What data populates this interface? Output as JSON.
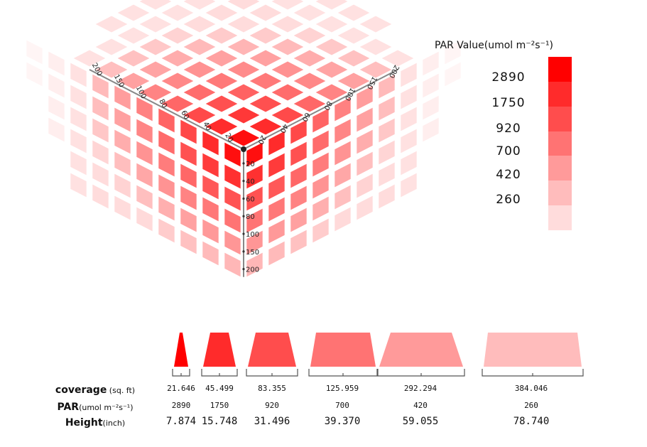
{
  "legend": {
    "title": "PAR Value(umol m⁻²s⁻¹)",
    "labels": [
      "2890",
      "1750",
      "920",
      "700",
      "420",
      "260"
    ],
    "colors": [
      "#ff0000",
      "#ff2b2b",
      "#ff4d4d",
      "#ff7373",
      "#ff9a9a",
      "#ffbcbc",
      "#ffdcdc"
    ]
  },
  "cube": {
    "top_axis_labels_left": [
      "200",
      "150",
      "100",
      "80",
      "60",
      "40",
      "20"
    ],
    "top_axis_labels_right": [
      "20",
      "40",
      "60",
      "80",
      "100",
      "150",
      "200"
    ],
    "vertical_axis_labels": [
      "20",
      "40",
      "60",
      "80",
      "100",
      "150",
      "200"
    ]
  },
  "table": {
    "rows": [
      {
        "label_main": "coverage",
        "label_unit": " (sq. ft)",
        "values": [
          "21.646",
          "45.499",
          "83.355",
          "125.959",
          "292.294",
          "384.046"
        ]
      },
      {
        "label_main": "PAR",
        "label_unit": "(umol m⁻²s⁻¹)",
        "values": [
          "2890",
          "1750",
          "920",
          "700",
          "420",
          "260"
        ]
      },
      {
        "label_main": "Height",
        "label_unit": "(inch)",
        "values": [
          "7.874",
          "15.748",
          "31.496",
          "39.370",
          "59.055",
          "78.740"
        ]
      }
    ],
    "trapezoid_colors": [
      "#ff0000",
      "#ff2b2b",
      "#ff4d4d",
      "#ff7373",
      "#ff9a9a",
      "#ffbcbc"
    ]
  }
}
